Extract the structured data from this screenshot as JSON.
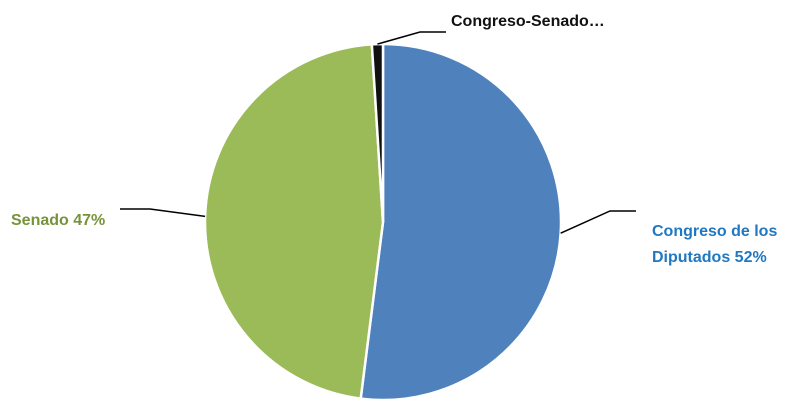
{
  "chart_data": {
    "type": "pie",
    "title": "",
    "slices": [
      {
        "name": "Congreso de los Diputados",
        "value": 52,
        "label_lines": [
          "Congreso de los",
          "Diputados 52%"
        ],
        "color": "#4F81BD",
        "label_color": "#1F78C1"
      },
      {
        "name": "Senado",
        "value": 47,
        "label_lines": [
          "Senado 47%"
        ],
        "color": "#9BBB59",
        "label_color": "#77933C"
      },
      {
        "name": "Congreso-Senado",
        "value": 1,
        "label_lines": [
          "Congreso-Senado…"
        ],
        "color": "#111111",
        "label_color": "#111111"
      }
    ],
    "legend": "none"
  }
}
